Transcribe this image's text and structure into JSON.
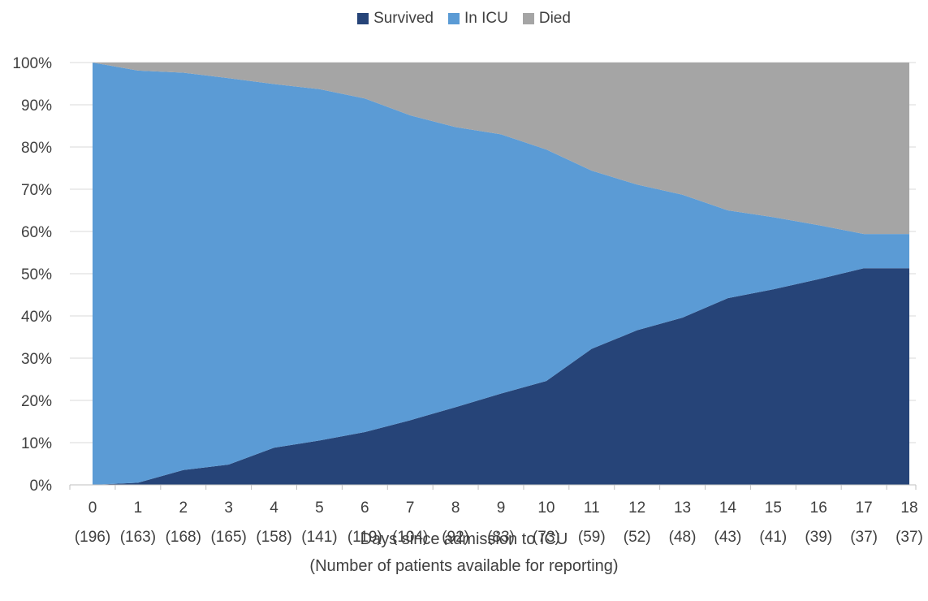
{
  "chart_data": {
    "type": "area",
    "stacked": "percent",
    "categories": [
      "0",
      "1",
      "2",
      "3",
      "4",
      "5",
      "6",
      "7",
      "8",
      "9",
      "10",
      "11",
      "12",
      "13",
      "14",
      "15",
      "16",
      "17",
      "18"
    ],
    "category_sublabels": [
      "(196)",
      "(163)",
      "(168)",
      "(165)",
      "(158)",
      "(141)",
      "(119)",
      "(104)",
      "(92)",
      "(83)",
      "(73)",
      "(59)",
      "(52)",
      "(48)",
      "(43)",
      "(41)",
      "(39)",
      "(37)",
      "(37)"
    ],
    "series": [
      {
        "name": "Survived",
        "color": "#264478",
        "values": [
          0,
          0.5,
          3.5,
          4.8,
          8.8,
          10.5,
          12.5,
          15.3,
          18.4,
          21.6,
          24.6,
          32.2,
          36.6,
          39.6,
          44.2,
          46.3,
          48.7,
          51.3,
          51.3
        ]
      },
      {
        "name": "In ICU",
        "color": "#5B9BD5",
        "values": [
          100,
          97.6,
          94.1,
          91.5,
          86.1,
          83.2,
          79.0,
          72.2,
          66.3,
          61.4,
          54.8,
          42.2,
          34.5,
          29.1,
          20.8,
          17.1,
          12.8,
          8.1,
          8.1
        ]
      },
      {
        "name": "Died",
        "color": "#A5A5A5",
        "values": [
          0,
          1.9,
          2.4,
          3.7,
          5.1,
          6.3,
          8.5,
          12.5,
          15.3,
          17.0,
          20.6,
          25.6,
          28.9,
          31.3,
          35.0,
          36.6,
          38.5,
          40.6,
          40.6
        ]
      }
    ],
    "y_ticks": [
      "0%",
      "10%",
      "20%",
      "30%",
      "40%",
      "50%",
      "60%",
      "70%",
      "80%",
      "90%",
      "100%"
    ],
    "ylim": [
      0,
      100
    ],
    "xlabel": "Days since admission to ICU",
    "xlabel_sub": "(Number of patients available for reporting)",
    "legend_position": "top",
    "grid": true
  }
}
